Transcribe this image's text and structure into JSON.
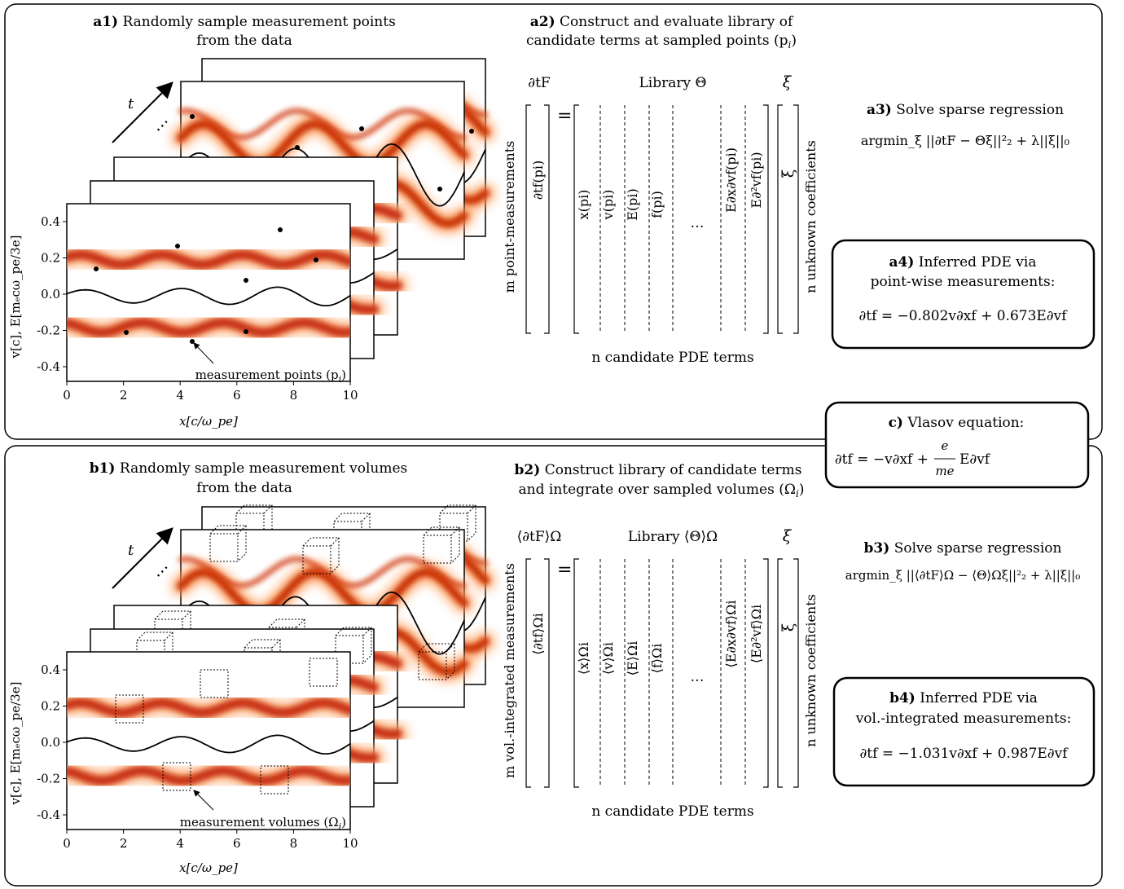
{
  "panel_a": {
    "a1": {
      "tag": "a1)",
      "line1": "Randomly sample measurement points",
      "line2": "from the data"
    },
    "a2": {
      "tag": "a2)",
      "line1": "Construct and evaluate library of",
      "line2": "candidate terms at sampled points (p",
      "line2_sub": "i",
      "line2_end": ")"
    },
    "a3": {
      "tag": "a3)",
      "title": "Solve sparse regression",
      "formula": "argmin_ξ ||∂tF − Θξ||²₂ + λ||ξ||₀"
    },
    "a4": {
      "tag": "a4)",
      "line1": "Inferred PDE via",
      "line2": "point-wise measurements:",
      "equation": "∂tf = −0.802v∂xf + 0.673E∂vf"
    },
    "lhs_label": "∂tF",
    "library_label": "Library Θ",
    "xi_label": "ξ",
    "lhs_vec": "∂tf(pi)",
    "rows_label": "m point-measurements",
    "cols": [
      "x(pi)",
      "v(pi)",
      "E(pi)",
      "f(pi)",
      "…",
      "E∂x∂vf(pi)",
      "E∂²vf(pi)"
    ],
    "cols_label": "n candidate PDE terms",
    "coef_label": "n unknown coefficients",
    "annotation": "measurement points (p",
    "annotation_sub": "i",
    "annotation_end": ")"
  },
  "panel_b": {
    "b1": {
      "tag": "b1)",
      "line1": "Randomly sample measurement volumes",
      "line2": "from the data"
    },
    "b2": {
      "tag": "b2)",
      "line1": "Construct library of candidate terms",
      "line2": "and integrate over sampled volumes (Ω",
      "line2_sub": "i",
      "line2_end": ")"
    },
    "b3": {
      "tag": "b3)",
      "title": "Solve sparse regression",
      "formula": "argmin_ξ ||⟨∂tF⟩Ω − ⟨Θ⟩Ωξ||²₂ + λ||ξ||₀"
    },
    "b4": {
      "tag": "b4)",
      "line1": "Inferred PDE via",
      "line2": "vol.-integrated measurements:",
      "equation": "∂tf = −1.031v∂xf + 0.987E∂vf"
    },
    "lhs_label": "⟨∂tF⟩Ω",
    "library_label": "Library ⟨Θ⟩Ω",
    "xi_label": "ξ",
    "lhs_vec": "⟨∂tf⟩Ωi",
    "rows_label": "m vol.-integrated measurements",
    "cols": [
      "⟨x⟩Ωi",
      "⟨v⟩Ωi",
      "⟨E⟩Ωi",
      "⟨f⟩Ωi",
      "…",
      "⟨E∂x∂vf⟩Ωi",
      "⟨E∂²vf⟩Ωi"
    ],
    "cols_label": "n candidate PDE terms",
    "coef_label": "n unknown coefficients",
    "annotation": "measurement volumes (Ω",
    "annotation_sub": "i",
    "annotation_end": ")"
  },
  "panel_c": {
    "tag": "c)",
    "title": "Vlasov equation:",
    "lhs": "∂tf = −v∂xf +",
    "num": "e",
    "den": "me",
    "rhs": "E∂vf"
  },
  "plot": {
    "ylabel": "v[c], E[mₑcω_pe/3e]",
    "xlabel": "x[c/ω_pe]",
    "xticks": [
      "0",
      "2",
      "4",
      "6",
      "8",
      "10"
    ],
    "yticks": [
      "0.4",
      "0.2",
      "0.0",
      "-0.2",
      "-0.4"
    ],
    "time_label": "t",
    "dots_label": "⋯"
  },
  "colors": {
    "band": "#b22200",
    "band_glow": "#ff7a2a",
    "frame": "#000000"
  }
}
